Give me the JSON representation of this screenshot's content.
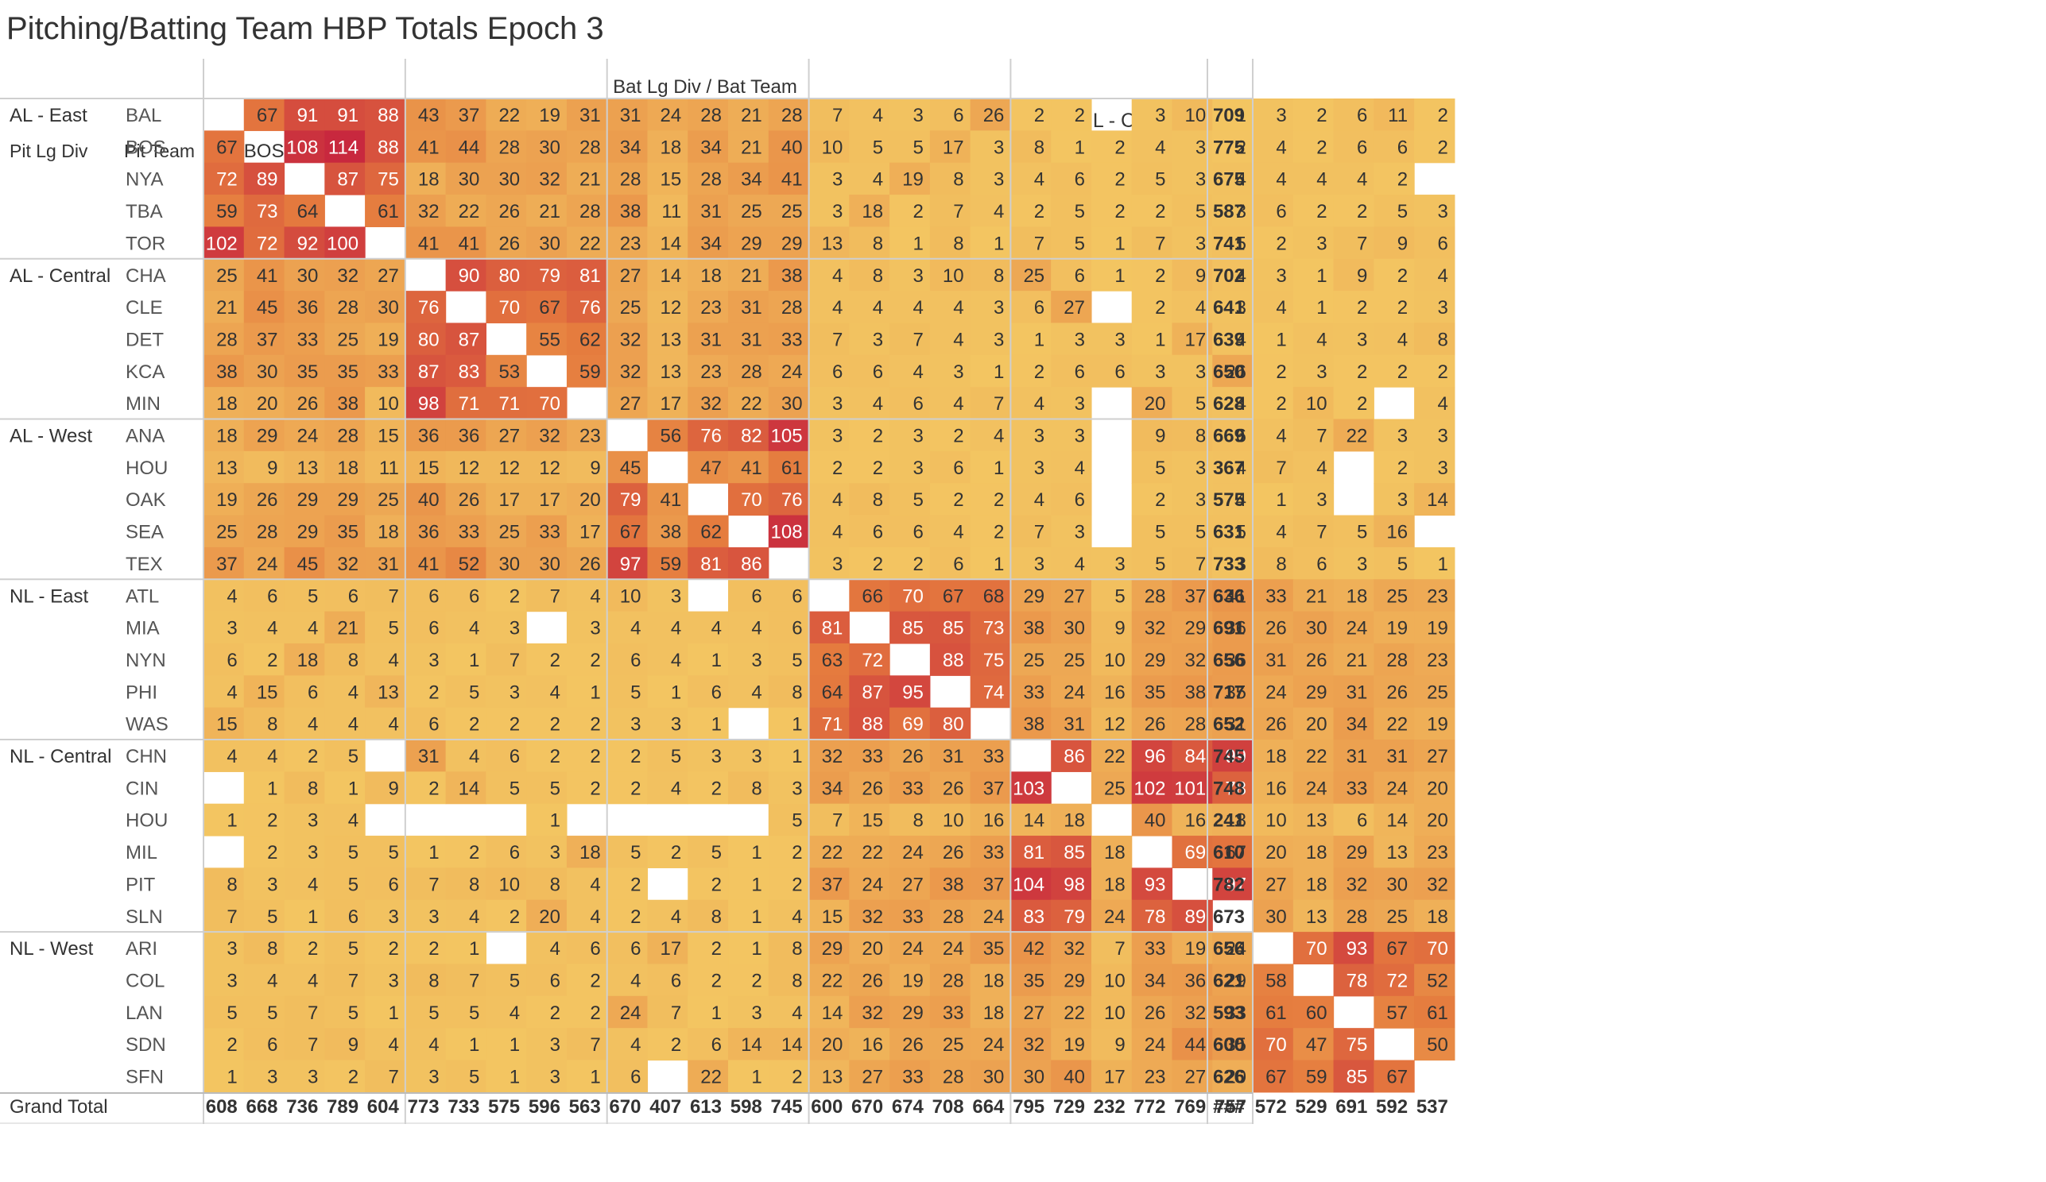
{
  "title": "Pitching/Batting Team HBP Totals Epoch 3",
  "chart_data": {
    "type": "heatmap",
    "column_header_label": "Bat Lg Div  /  Bat Team",
    "row_header_labels": [
      "Pit Lg Div",
      "Pit Team"
    ],
    "grand_total_label": "Grand Total",
    "divisions": [
      {
        "name": "AL - East",
        "teams": [
          "BAL",
          "BOS",
          "NYA",
          "TBA",
          "TOR"
        ]
      },
      {
        "name": "AL - Central",
        "teams": [
          "CHA",
          "CLE",
          "DET",
          "KCA",
          "MIN"
        ]
      },
      {
        "name": "AL - West",
        "teams": [
          "ANA",
          "HOU",
          "OAK",
          "SEA",
          "TEX"
        ]
      },
      {
        "name": "NL - East",
        "teams": [
          "ATL",
          "MIA",
          "NYN",
          "PHI",
          "WAS"
        ]
      },
      {
        "name": "NL - Central",
        "teams": [
          "CHN",
          "CIN",
          "HOU",
          "MIL",
          "PIT",
          "SLN"
        ]
      },
      {
        "name": "NL - West",
        "teams": [
          "ARI",
          "COL",
          "LAN",
          "SDN",
          "SFN"
        ]
      }
    ],
    "values": [
      [
        null,
        67,
        91,
        91,
        88,
        43,
        37,
        22,
        19,
        31,
        31,
        24,
        28,
        21,
        28,
        7,
        4,
        3,
        6,
        26,
        2,
        2,
        null,
        3,
        10,
        1,
        3,
        2,
        6,
        11,
        2
      ],
      [
        67,
        null,
        108,
        114,
        88,
        41,
        44,
        28,
        30,
        28,
        34,
        18,
        34,
        21,
        40,
        10,
        5,
        5,
        17,
        3,
        8,
        1,
        2,
        4,
        3,
        2,
        4,
        2,
        6,
        6,
        2
      ],
      [
        72,
        89,
        null,
        87,
        75,
        18,
        30,
        30,
        32,
        21,
        28,
        15,
        28,
        34,
        41,
        3,
        4,
        19,
        8,
        3,
        4,
        6,
        2,
        5,
        3,
        4,
        4,
        4,
        4,
        2,
        null
      ],
      [
        59,
        73,
        64,
        null,
        61,
        32,
        22,
        26,
        21,
        28,
        38,
        11,
        31,
        25,
        25,
        3,
        18,
        2,
        7,
        4,
        2,
        5,
        2,
        2,
        5,
        3,
        6,
        2,
        2,
        5,
        3
      ],
      [
        102,
        72,
        92,
        100,
        null,
        41,
        41,
        26,
        30,
        22,
        23,
        14,
        34,
        29,
        29,
        13,
        8,
        1,
        8,
        1,
        7,
        5,
        1,
        7,
        3,
        5,
        2,
        3,
        7,
        9,
        6
      ],
      [
        25,
        41,
        30,
        32,
        27,
        null,
        90,
        80,
        79,
        81,
        27,
        14,
        18,
        21,
        38,
        4,
        8,
        3,
        10,
        8,
        25,
        6,
        1,
        2,
        9,
        4,
        3,
        1,
        9,
        2,
        4
      ],
      [
        21,
        45,
        36,
        28,
        30,
        76,
        null,
        70,
        67,
        76,
        25,
        12,
        23,
        31,
        28,
        4,
        4,
        4,
        4,
        3,
        6,
        27,
        null,
        2,
        4,
        3,
        4,
        1,
        2,
        2,
        3
      ],
      [
        28,
        37,
        33,
        25,
        19,
        80,
        87,
        null,
        55,
        62,
        32,
        13,
        31,
        31,
        33,
        7,
        3,
        7,
        4,
        3,
        1,
        3,
        3,
        1,
        17,
        4,
        1,
        4,
        3,
        4,
        8
      ],
      [
        38,
        30,
        35,
        35,
        33,
        87,
        83,
        53,
        null,
        59,
        32,
        13,
        23,
        28,
        24,
        6,
        6,
        4,
        3,
        1,
        2,
        6,
        6,
        3,
        3,
        26,
        2,
        3,
        2,
        2,
        2
      ],
      [
        18,
        20,
        26,
        38,
        10,
        98,
        71,
        71,
        70,
        null,
        27,
        17,
        32,
        22,
        30,
        3,
        4,
        6,
        4,
        7,
        4,
        3,
        null,
        20,
        5,
        4,
        2,
        10,
        2,
        null,
        4
      ],
      [
        18,
        29,
        24,
        28,
        15,
        36,
        36,
        27,
        32,
        23,
        null,
        56,
        76,
        82,
        105,
        3,
        2,
        3,
        2,
        4,
        3,
        3,
        null,
        9,
        8,
        6,
        4,
        7,
        22,
        3,
        3
      ],
      [
        13,
        9,
        13,
        18,
        11,
        15,
        12,
        12,
        12,
        9,
        45,
        null,
        47,
        41,
        61,
        2,
        2,
        3,
        6,
        1,
        3,
        4,
        null,
        5,
        3,
        4,
        7,
        4,
        null,
        2,
        3
      ],
      [
        19,
        26,
        29,
        29,
        25,
        40,
        26,
        17,
        17,
        20,
        79,
        41,
        null,
        70,
        76,
        4,
        8,
        5,
        2,
        2,
        4,
        6,
        null,
        2,
        3,
        4,
        1,
        3,
        null,
        3,
        14
      ],
      [
        25,
        28,
        29,
        35,
        18,
        36,
        33,
        25,
        33,
        17,
        67,
        38,
        62,
        null,
        108,
        4,
        6,
        6,
        4,
        2,
        7,
        3,
        null,
        5,
        5,
        5,
        4,
        7,
        5,
        16,
        null
      ],
      [
        37,
        24,
        45,
        32,
        31,
        41,
        52,
        30,
        30,
        26,
        97,
        59,
        81,
        86,
        null,
        3,
        2,
        2,
        6,
        1,
        3,
        4,
        3,
        5,
        7,
        3,
        8,
        6,
        3,
        5,
        1
      ],
      [
        4,
        6,
        5,
        6,
        7,
        6,
        6,
        2,
        7,
        4,
        10,
        3,
        null,
        6,
        6,
        null,
        66,
        70,
        67,
        68,
        29,
        27,
        5,
        28,
        37,
        41,
        33,
        21,
        18,
        25,
        23
      ],
      [
        3,
        4,
        4,
        21,
        5,
        6,
        4,
        3,
        null,
        3,
        4,
        4,
        4,
        4,
        6,
        81,
        null,
        85,
        85,
        73,
        38,
        30,
        9,
        32,
        29,
        36,
        26,
        30,
        24,
        19,
        19
      ],
      [
        6,
        2,
        18,
        8,
        4,
        3,
        1,
        7,
        2,
        2,
        6,
        4,
        1,
        3,
        5,
        63,
        72,
        null,
        88,
        75,
        25,
        25,
        10,
        29,
        32,
        36,
        31,
        26,
        21,
        28,
        23
      ],
      [
        4,
        15,
        6,
        4,
        13,
        2,
        5,
        3,
        4,
        1,
        5,
        1,
        6,
        4,
        8,
        64,
        87,
        95,
        null,
        74,
        33,
        24,
        16,
        35,
        38,
        35,
        24,
        29,
        31,
        26,
        25
      ],
      [
        15,
        8,
        4,
        4,
        4,
        6,
        2,
        2,
        2,
        2,
        3,
        3,
        1,
        null,
        1,
        71,
        88,
        69,
        80,
        null,
        38,
        31,
        12,
        26,
        28,
        31,
        26,
        20,
        34,
        22,
        19
      ],
      [
        4,
        4,
        2,
        5,
        null,
        31,
        4,
        6,
        2,
        2,
        2,
        5,
        3,
        3,
        1,
        32,
        33,
        26,
        31,
        33,
        null,
        86,
        22,
        96,
        84,
        99,
        18,
        22,
        31,
        31,
        27
      ],
      [
        null,
        1,
        8,
        1,
        9,
        2,
        14,
        5,
        5,
        2,
        2,
        4,
        2,
        8,
        3,
        34,
        26,
        33,
        26,
        37,
        103,
        null,
        25,
        102,
        101,
        78,
        16,
        24,
        33,
        24,
        20
      ],
      [
        1,
        2,
        3,
        4,
        null,
        null,
        null,
        null,
        1,
        null,
        null,
        null,
        null,
        null,
        5,
        7,
        15,
        8,
        10,
        16,
        14,
        18,
        null,
        40,
        16,
        18,
        10,
        13,
        6,
        14,
        20
      ],
      [
        null,
        2,
        3,
        5,
        5,
        1,
        2,
        6,
        3,
        18,
        5,
        2,
        5,
        1,
        2,
        22,
        22,
        24,
        26,
        33,
        81,
        85,
        18,
        null,
        69,
        67,
        20,
        18,
        29,
        13,
        23
      ],
      [
        8,
        3,
        4,
        5,
        6,
        7,
        8,
        10,
        8,
        4,
        2,
        null,
        2,
        1,
        2,
        37,
        24,
        27,
        38,
        37,
        104,
        98,
        18,
        93,
        null,
        97,
        27,
        18,
        32,
        30,
        32
      ],
      [
        7,
        5,
        1,
        6,
        3,
        3,
        4,
        2,
        20,
        4,
        2,
        4,
        8,
        1,
        4,
        15,
        32,
        33,
        28,
        24,
        83,
        79,
        24,
        78,
        89,
        null,
        30,
        13,
        28,
        25,
        18
      ],
      [
        3,
        8,
        2,
        5,
        2,
        2,
        1,
        null,
        4,
        6,
        6,
        17,
        2,
        1,
        8,
        29,
        20,
        24,
        24,
        35,
        42,
        32,
        7,
        33,
        19,
        24,
        null,
        70,
        93,
        67,
        70
      ],
      [
        3,
        4,
        4,
        7,
        3,
        8,
        7,
        5,
        6,
        2,
        4,
        6,
        2,
        2,
        8,
        22,
        26,
        19,
        28,
        18,
        35,
        29,
        10,
        34,
        36,
        29,
        58,
        null,
        78,
        72,
        52
      ],
      [
        5,
        5,
        7,
        5,
        1,
        5,
        5,
        4,
        2,
        2,
        24,
        7,
        1,
        3,
        4,
        14,
        32,
        29,
        33,
        18,
        27,
        22,
        10,
        26,
        32,
        33,
        61,
        60,
        null,
        57,
        61
      ],
      [
        2,
        6,
        7,
        9,
        4,
        4,
        1,
        1,
        3,
        7,
        4,
        2,
        6,
        14,
        14,
        20,
        16,
        26,
        25,
        24,
        32,
        19,
        9,
        24,
        44,
        35,
        70,
        47,
        75,
        null,
        50
      ],
      [
        1,
        3,
        3,
        2,
        7,
        3,
        5,
        1,
        3,
        1,
        6,
        null,
        22,
        1,
        2,
        13,
        27,
        33,
        28,
        30,
        30,
        40,
        17,
        23,
        27,
        20,
        67,
        59,
        85,
        67,
        null
      ]
    ],
    "row_totals": [
      709,
      775,
      675,
      587,
      741,
      702,
      641,
      639,
      650,
      628,
      669,
      367,
      575,
      631,
      733,
      636,
      691,
      656,
      717,
      652,
      745,
      748,
      241,
      610,
      782,
      673,
      656,
      621,
      593,
      600,
      626
    ],
    "column_totals": [
      "608",
      "668",
      "736",
      "789",
      "604",
      "773",
      "733",
      "575",
      "596",
      "563",
      "670",
      "407",
      "613",
      "598",
      "745",
      "600",
      "670",
      "674",
      "708",
      "664",
      "795",
      "729",
      "232",
      "772",
      "769",
      "757",
      "572",
      "529",
      "691",
      "592",
      "537"
    ],
    "grand_total_value": "###",
    "color_scale": {
      "low": "#f3c662",
      "mid": "#e57b3e",
      "high": "#c8283e",
      "max_value": 114
    },
    "grid": false
  }
}
